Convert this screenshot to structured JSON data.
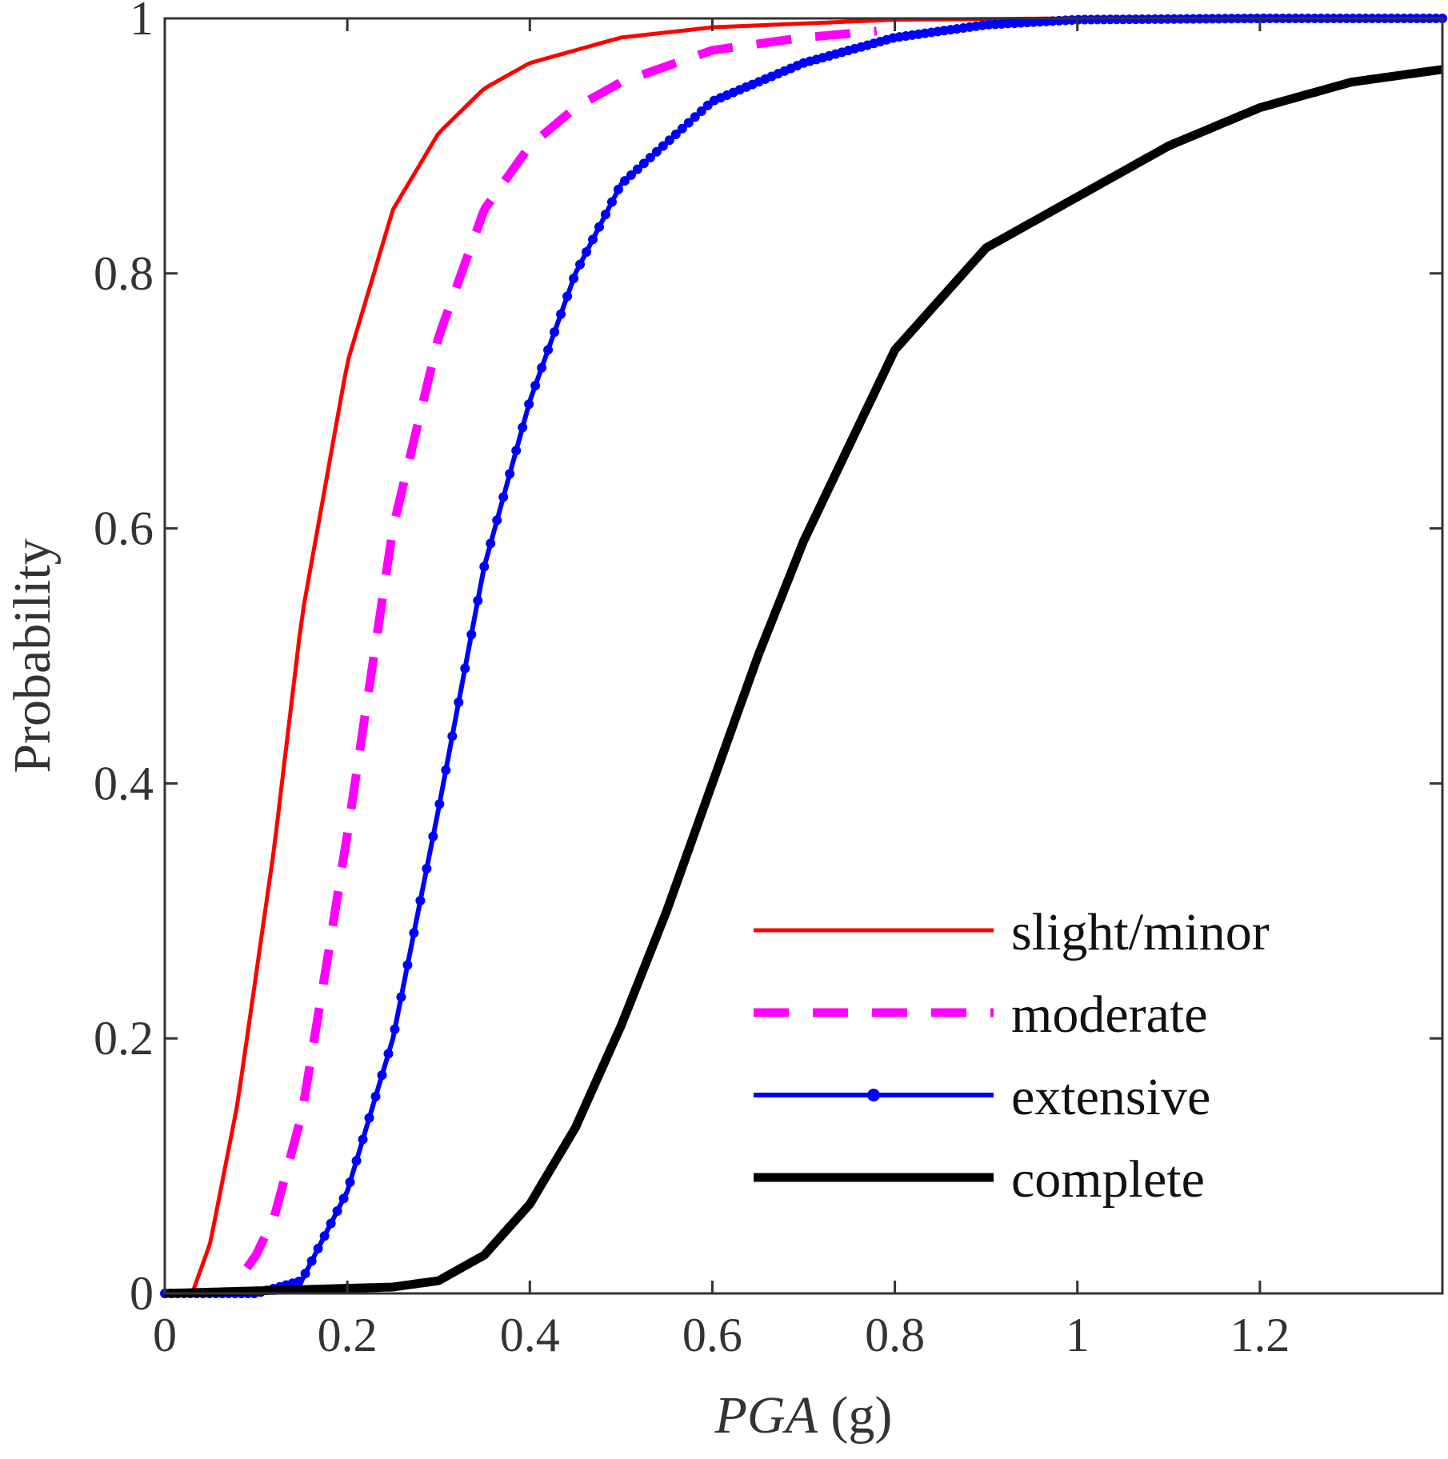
{
  "chart_data": {
    "type": "line",
    "xlabel": {
      "italic": "PGA",
      "rest": " (g)"
    },
    "ylabel": "Probability",
    "xlim": [
      0,
      1.4
    ],
    "ylim": [
      0,
      1
    ],
    "x_ticks": [
      0,
      0.2,
      0.4,
      0.6,
      0.8,
      1,
      1.2
    ],
    "x_tick_labels": [
      "0",
      "0.2",
      "0.4",
      "0.6",
      "0.8",
      "1",
      "1.2"
    ],
    "y_ticks": [
      0,
      0.2,
      0.4,
      0.6,
      0.8,
      1
    ],
    "y_tick_labels": [
      "0",
      "0.2",
      "0.4",
      "0.6",
      "0.8",
      "1"
    ],
    "grid": false,
    "legend_position": "bottom-right",
    "series": [
      {
        "name": "slight/minor",
        "color": "#ff0000",
        "style": "solid",
        "x_start": 0.03,
        "x_end": 1.4,
        "x": [
          0.03,
          0.05,
          0.08,
          0.1,
          0.12,
          0.15,
          0.2,
          0.25,
          0.3,
          0.35,
          0.4,
          0.5,
          0.6,
          0.8,
          1.0,
          1.2,
          1.4
        ],
        "y": [
          0.0,
          0.04,
          0.15,
          0.25,
          0.35,
          0.53,
          0.73,
          0.85,
          0.91,
          0.945,
          0.965,
          0.985,
          0.993,
          0.999,
          1.0,
          1.0,
          1.0
        ]
      },
      {
        "name": "moderate",
        "color": "#ff00ff",
        "style": "dashed",
        "x_start": 0.09,
        "x_end": 0.78,
        "x": [
          0.09,
          0.1,
          0.12,
          0.15,
          0.18,
          0.2,
          0.25,
          0.3,
          0.35,
          0.4,
          0.45,
          0.5,
          0.6,
          0.7,
          0.78
        ],
        "y": [
          0.02,
          0.03,
          0.06,
          0.14,
          0.27,
          0.36,
          0.6,
          0.75,
          0.85,
          0.9,
          0.93,
          0.95,
          0.975,
          0.985,
          0.99
        ]
      },
      {
        "name": "extensive",
        "color": "#0000ff",
        "style": "solid-markers",
        "x_start": 0,
        "x_end": 1.4,
        "x": [
          0,
          0.1,
          0.15,
          0.2,
          0.25,
          0.3,
          0.35,
          0.4,
          0.45,
          0.5,
          0.6,
          0.7,
          0.8,
          0.9,
          1.0,
          1.2,
          1.4
        ],
        "y": [
          0.0,
          0.0,
          0.01,
          0.08,
          0.2,
          0.38,
          0.57,
          0.7,
          0.8,
          0.87,
          0.935,
          0.965,
          0.985,
          0.995,
          0.999,
          1.0,
          1.0
        ]
      },
      {
        "name": "complete",
        "color": "#000000",
        "style": "solid-thick",
        "x_start": 0,
        "x_end": 1.4,
        "x": [
          0,
          0.25,
          0.3,
          0.35,
          0.4,
          0.45,
          0.5,
          0.55,
          0.6,
          0.65,
          0.7,
          0.8,
          0.9,
          1.0,
          1.1,
          1.2,
          1.3,
          1.4
        ],
        "y": [
          0.0,
          0.005,
          0.01,
          0.03,
          0.07,
          0.13,
          0.21,
          0.3,
          0.4,
          0.5,
          0.59,
          0.74,
          0.82,
          0.86,
          0.9,
          0.93,
          0.95,
          0.96
        ]
      }
    ]
  }
}
